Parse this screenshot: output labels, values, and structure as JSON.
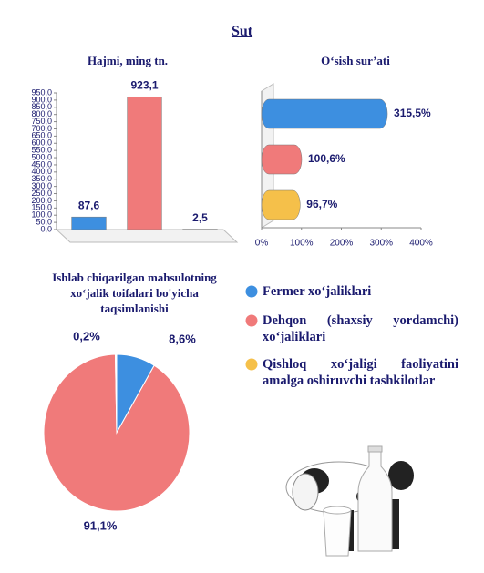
{
  "title": "Sut",
  "chart_data": [
    {
      "type": "bar",
      "title": "Hajmi, ming tn.",
      "categories": [
        null,
        null,
        null
      ],
      "values": [
        87.6,
        923.1,
        2.5
      ],
      "value_labels": [
        "87,6",
        "923,1",
        "2,5"
      ],
      "colors": [
        "#3d8fe0",
        "#f07a7a",
        "#e8b040"
      ],
      "ylim": [
        0,
        950
      ],
      "yticks": [
        {
          "value": 0,
          "label": "0,0"
        },
        {
          "value": 50,
          "label": "50,0"
        },
        {
          "value": 100,
          "label": "100,0"
        },
        {
          "value": 150,
          "label": "150,0"
        },
        {
          "value": 200,
          "label": "200,0"
        },
        {
          "value": 250,
          "label": "250,0"
        },
        {
          "value": 300,
          "label": "300,0"
        },
        {
          "value": 350,
          "label": "350,0"
        },
        {
          "value": 400,
          "label": "400,0"
        },
        {
          "value": 450,
          "label": "450,0"
        },
        {
          "value": 500,
          "label": "500,0"
        },
        {
          "value": 550,
          "label": "550,0"
        },
        {
          "value": 600,
          "label": "600,0"
        },
        {
          "value": 650,
          "label": "650,0"
        },
        {
          "value": 700,
          "label": "700,0"
        },
        {
          "value": 750,
          "label": "750,0"
        },
        {
          "value": 800,
          "label": "800,0"
        },
        {
          "value": 850,
          "label": "850,0"
        },
        {
          "value": 900,
          "label": "900,0"
        },
        {
          "value": 950,
          "label": "950,0"
        }
      ],
      "grid": false
    },
    {
      "type": "hbar",
      "title": "O‘sish sur’ati",
      "categories": [
        null,
        null,
        null
      ],
      "values": [
        315.5,
        100.6,
        96.7
      ],
      "value_labels": [
        "315,5%",
        "100,6%",
        "96,7%"
      ],
      "colors": [
        "#3d8fe0",
        "#f07a7a",
        "#f5c04a"
      ],
      "xlim": [
        0,
        400
      ],
      "xticks": [
        {
          "value": 0,
          "label": "0%"
        },
        {
          "value": 100,
          "label": "100%"
        },
        {
          "value": 200,
          "label": "200%"
        },
        {
          "value": 300,
          "label": "300%"
        },
        {
          "value": 400,
          "label": "400%"
        }
      ],
      "grid": false
    },
    {
      "type": "pie",
      "title": "Ishlab chiqarilgan mahsulotning xo‘jalik toifalari bo'yicha taqsimlanishi",
      "categories": [
        "Fermer xo‘jaliklari",
        "Dehqon (shaxsiy yordamchi) xo‘jaliklari",
        "Qishloq xo‘jaligi faoliyatini amalga oshiruvchi tashkilotlar"
      ],
      "values": [
        8.6,
        91.1,
        0.2
      ],
      "value_labels": [
        "8,6%",
        "91,1%",
        "0,2%"
      ],
      "colors": [
        "#3d8fe0",
        "#f07a7a",
        "#f5c04a"
      ]
    }
  ]
}
